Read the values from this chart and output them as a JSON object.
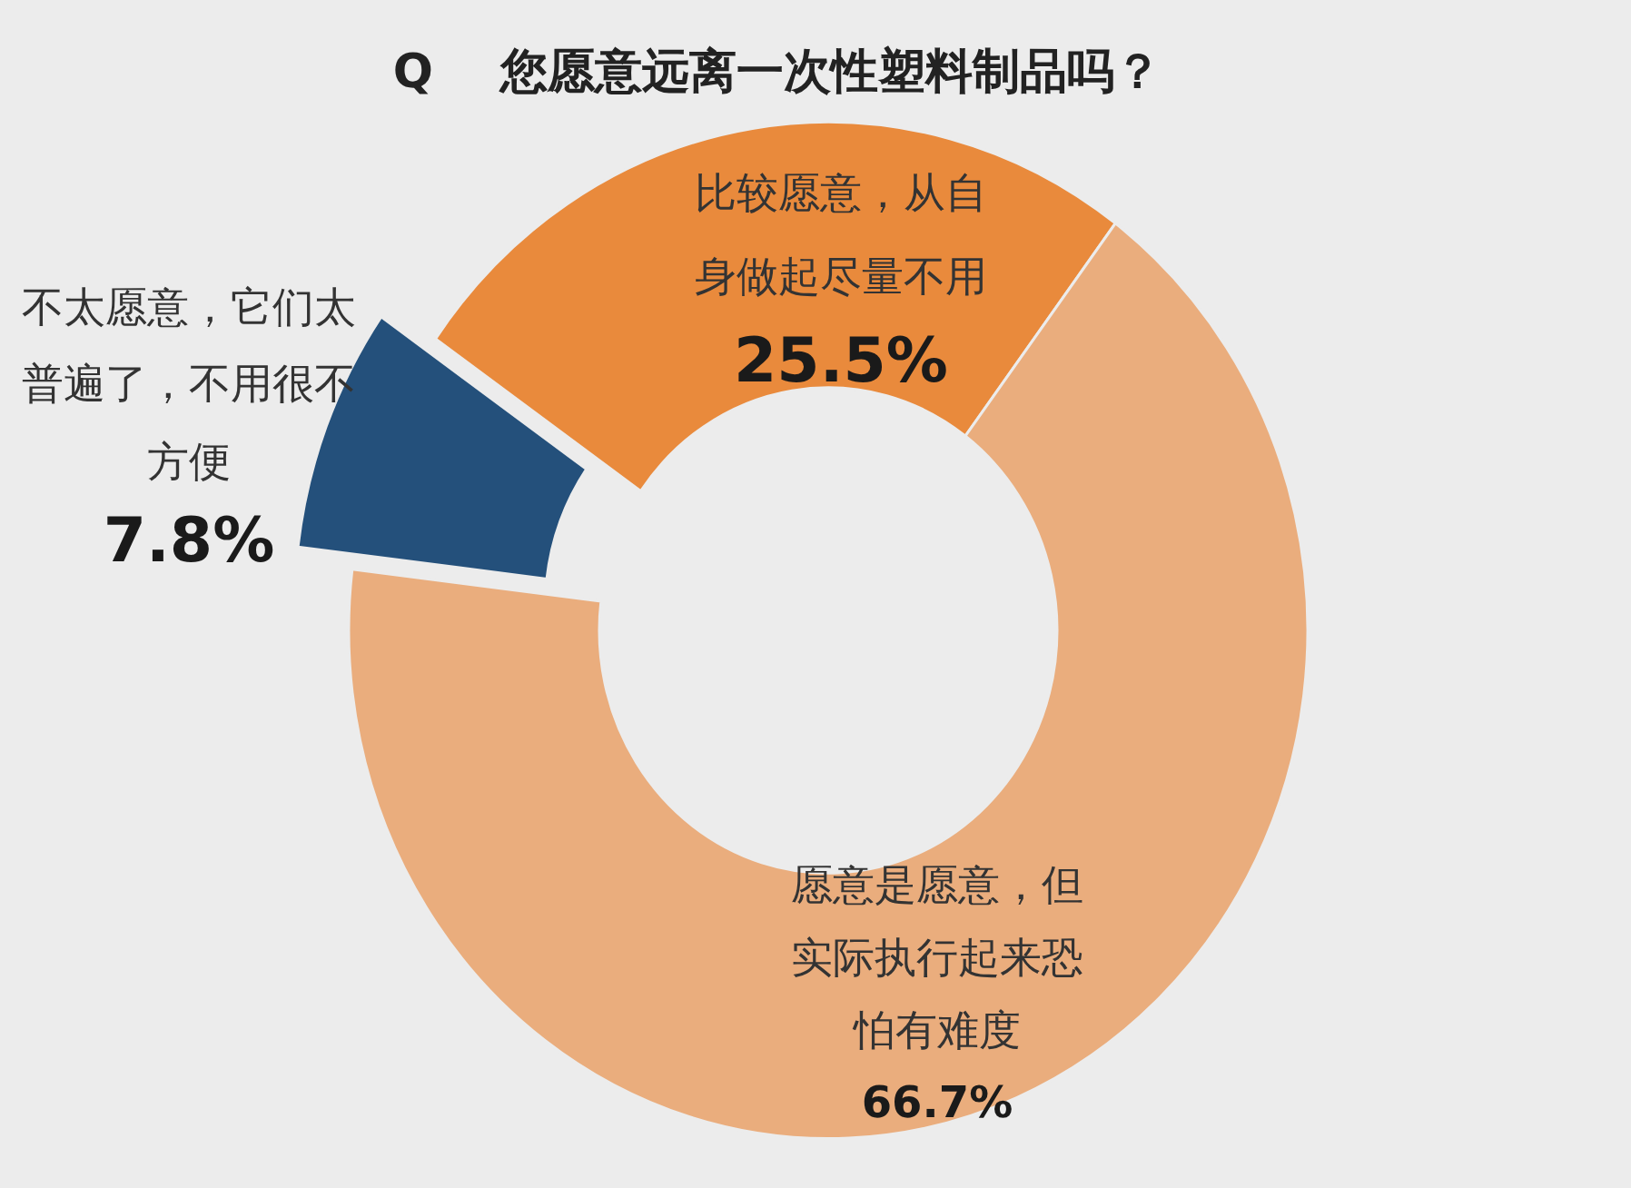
{
  "chart_data": {
    "type": "donut",
    "title": "Q 您愿意远离一次性塑料制品吗？",
    "categories": [
      "比较愿意，从自身做起尽量不用",
      "愿意是愿意，但实际执行起来恐怕有难度",
      "不太愿意，它们太普遍了，不用很不方便"
    ],
    "values": [
      25.5,
      66.7,
      7.8
    ],
    "value_labels": [
      "25.5%",
      "66.7%",
      "7.8%"
    ],
    "colors": [
      "#e98a3c",
      "#eaad7d",
      "#24507b"
    ]
  }
}
